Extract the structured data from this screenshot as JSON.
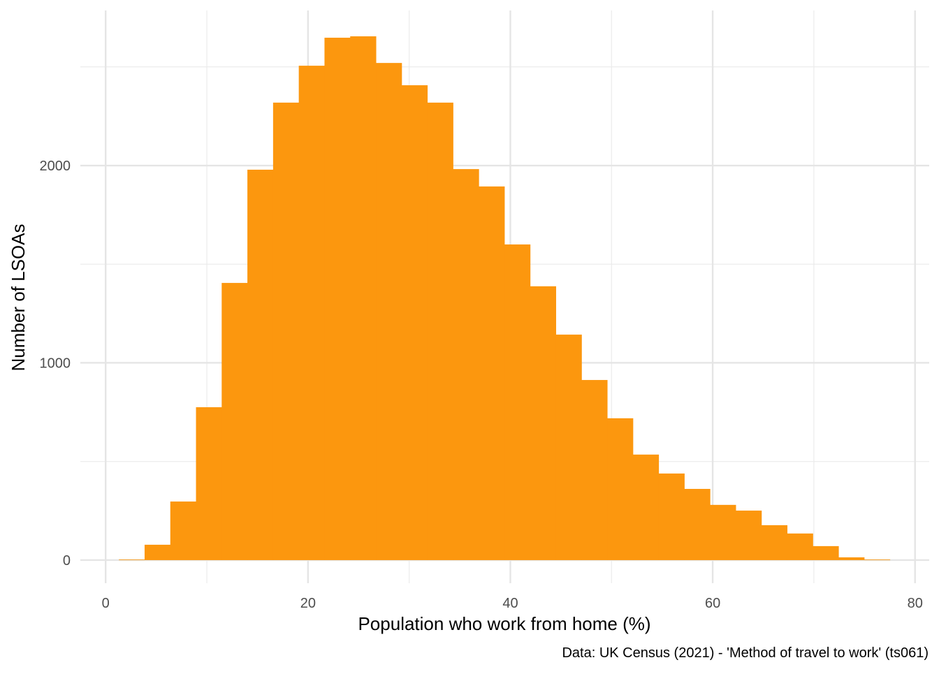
{
  "chart_data": {
    "type": "bar",
    "subtype": "histogram",
    "title": "",
    "xlabel": "Population who work from home (%)",
    "ylabel": "Number of LSOAs",
    "caption": "Data: UK Census (2021) - 'Method of travel to work' (ts061)",
    "bar_color": "#FC970E",
    "grid": true,
    "xlim": [
      -2.5,
      81.4
    ],
    "ylim": [
      -117,
      2786
    ],
    "x_ticks": [
      0,
      20,
      40,
      60,
      80
    ],
    "x_tick_labels": [
      "0",
      "20",
      "40",
      "60",
      "80"
    ],
    "y_ticks": [
      0,
      1000,
      2000
    ],
    "y_tick_labels": [
      "0",
      "1000",
      "2000"
    ],
    "bin_start": 1.31,
    "bin_width": 2.54,
    "values": [
      3,
      78,
      297,
      775,
      1405,
      1979,
      2319,
      2506,
      2648,
      2655,
      2520,
      2407,
      2319,
      1982,
      1894,
      1600,
      1388,
      1143,
      913,
      719,
      535,
      439,
      361,
      280,
      251,
      177,
      135,
      71,
      14,
      3
    ]
  }
}
